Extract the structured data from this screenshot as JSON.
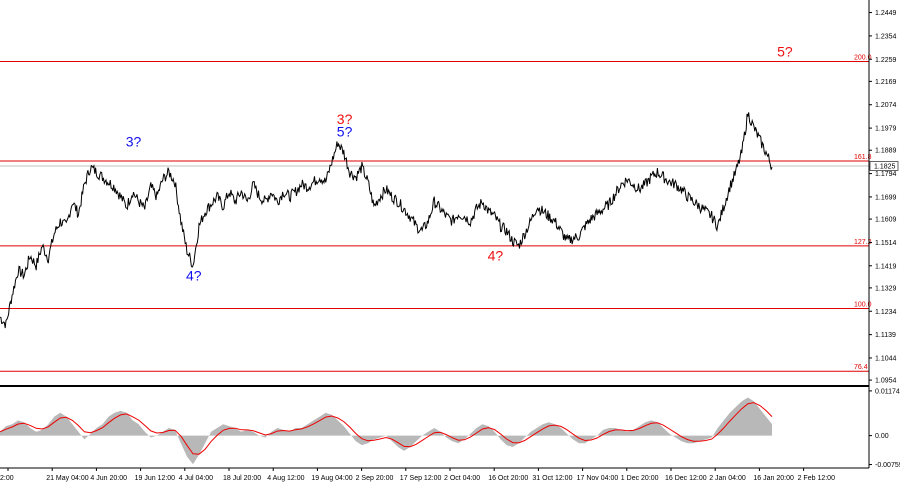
{
  "chart_data": [
    {
      "type": "line",
      "title": "",
      "price_axis": {
        "ticks": [
          "1.2449",
          "1.2354",
          "1.2259",
          "1.2169",
          "1.2074",
          "1.1979",
          "1.1889",
          "1.1794",
          "1.1699",
          "1.1609",
          "1.1514",
          "1.1419",
          "1.1329",
          "1.1234",
          "1.1139",
          "1.1044",
          "1.0954"
        ],
        "current_price": "1.1825",
        "range": [
          1.093,
          1.25
        ]
      },
      "time_axis": {
        "ticks": [
          "2:00",
          "21 May 04:00",
          "4 Jun 20:00",
          "19 Jun 12:00",
          "4 Jul 04:00",
          "18 Jul 20:00",
          "4 Aug 12:00",
          "19 Aug 04:00",
          "2 Sep 20:00",
          "17 Sep 12:00",
          "2 Oct 04:00",
          "16 Oct 20:00",
          "31 Oct 12:00",
          "17 Nov 04:00",
          "1 Dec 20:00",
          "16 Dec 12:00",
          "2 Jan 04:00",
          "16 Jan 20:00",
          "2 Feb 12:00"
        ]
      },
      "fib_levels": [
        {
          "label": "200.0",
          "value": 1.225
        },
        {
          "label": "161.8",
          "value": 1.1845
        },
        {
          "label": "127.2",
          "value": 1.15
        },
        {
          "label": "100.0",
          "value": 1.1245
        },
        {
          "label": "76.4",
          "value": 1.099
        }
      ],
      "series": [
        {
          "values": [
            1.121,
            1.118,
            1.13,
            1.14,
            1.138,
            1.146,
            1.142,
            1.15,
            1.145,
            1.155,
            1.16,
            1.158,
            1.168,
            1.163,
            1.175,
            1.182,
            1.18,
            1.178,
            1.176,
            1.174,
            1.17,
            1.166,
            1.172,
            1.168,
            1.165,
            1.174,
            1.17,
            1.177,
            1.18,
            1.176,
            1.16,
            1.148,
            1.142,
            1.158,
            1.164,
            1.167,
            1.17,
            1.166,
            1.172,
            1.168,
            1.172,
            1.168,
            1.175,
            1.17,
            1.168,
            1.172,
            1.168,
            1.172,
            1.17,
            1.172,
            1.175,
            1.174,
            1.176,
            1.178,
            1.176,
            1.184,
            1.192,
            1.188,
            1.18,
            1.178,
            1.182,
            1.176,
            1.166,
            1.17,
            1.173,
            1.17,
            1.168,
            1.165,
            1.162,
            1.158,
            1.156,
            1.16,
            1.168,
            1.165,
            1.162,
            1.16,
            1.163,
            1.162,
            1.16,
            1.165,
            1.168,
            1.164,
            1.162,
            1.158,
            1.156,
            1.152,
            1.15,
            1.155,
            1.16,
            1.166,
            1.164,
            1.162,
            1.16,
            1.156,
            1.152,
            1.153,
            1.154,
            1.158,
            1.161,
            1.163,
            1.165,
            1.167,
            1.171,
            1.175,
            1.177,
            1.175,
            1.173,
            1.175,
            1.178,
            1.18,
            1.178,
            1.176,
            1.175,
            1.173,
            1.17,
            1.168,
            1.166,
            1.164,
            1.162,
            1.158,
            1.166,
            1.174,
            1.18,
            1.188,
            1.204,
            1.198,
            1.193,
            1.188,
            1.182
          ]
        }
      ],
      "oscillator": {
        "ticks": [
          "0.01174",
          "0.00",
          "-0.00759"
        ],
        "range": [
          -0.0085,
          0.0125
        ],
        "histogram": [
          0.001,
          0.0025,
          0.003,
          0.004,
          0.0035,
          0.002,
          0.001,
          0.0015,
          0.003,
          0.005,
          0.006,
          0.005,
          0.003,
          0.001,
          -0.001,
          0.0005,
          0.002,
          0.003,
          0.005,
          0.006,
          0.0065,
          0.006,
          0.004,
          0.003,
          0.001,
          -0.0005,
          0.0,
          0.001,
          0.002,
          0.0015,
          -0.002,
          -0.0055,
          -0.0075,
          -0.005,
          -0.002,
          0.001,
          0.002,
          0.003,
          0.0025,
          0.002,
          0.001,
          0.0015,
          0.001,
          0.0,
          -0.0005,
          0.001,
          0.002,
          0.0015,
          0.001,
          0.002,
          0.002,
          0.003,
          0.004,
          0.005,
          0.006,
          0.0055,
          0.004,
          0.0025,
          0.0005,
          -0.0015,
          -0.0025,
          -0.002,
          -0.001,
          -0.0005,
          0.0,
          -0.0015,
          -0.003,
          -0.004,
          -0.003,
          -0.0015,
          0.0,
          0.001,
          0.002,
          0.001,
          -0.0005,
          -0.0015,
          -0.002,
          -0.001,
          0.0005,
          0.002,
          0.003,
          0.0025,
          0.001,
          -0.001,
          -0.0025,
          -0.003,
          -0.002,
          -0.0005,
          0.001,
          0.002,
          0.003,
          0.0035,
          0.003,
          0.002,
          0.0005,
          -0.001,
          -0.002,
          -0.002,
          -0.001,
          0.0,
          0.0015,
          0.002,
          0.002,
          0.0015,
          0.001,
          0.0015,
          0.0025,
          0.0035,
          0.004,
          0.0035,
          0.002,
          0.0005,
          -0.0005,
          -0.0015,
          -0.002,
          -0.002,
          -0.0015,
          -0.001,
          -0.0005,
          0.002,
          0.004,
          0.006,
          0.0075,
          0.009,
          0.01,
          0.009,
          0.007,
          0.005,
          0.003
        ]
      }
    }
  ],
  "wave_labels": [
    {
      "text": "3?",
      "color": "#1010ee",
      "price": 1.1905,
      "bar": 22
    },
    {
      "text": "4?",
      "color": "#1010ee",
      "price": 1.136,
      "bar": 32
    },
    {
      "text": "3?",
      "color": "#ee1010",
      "price": 1.1995,
      "bar": 57
    },
    {
      "text": "5?",
      "color": "#1010ee",
      "price": 1.1945,
      "bar": 57
    },
    {
      "text": "4?",
      "color": "#ee1010",
      "price": 1.144,
      "bar": 82
    },
    {
      "text": "5?",
      "color": "#ee1010",
      "price": 1.227,
      "bar": 130
    }
  ],
  "colors": {
    "price_line": "#000000",
    "fib_line": "#e00000",
    "histogram": "#b8b8b8",
    "signal_line": "#ee0000",
    "axis": "#000000",
    "current_price_box": "#ffffff"
  }
}
